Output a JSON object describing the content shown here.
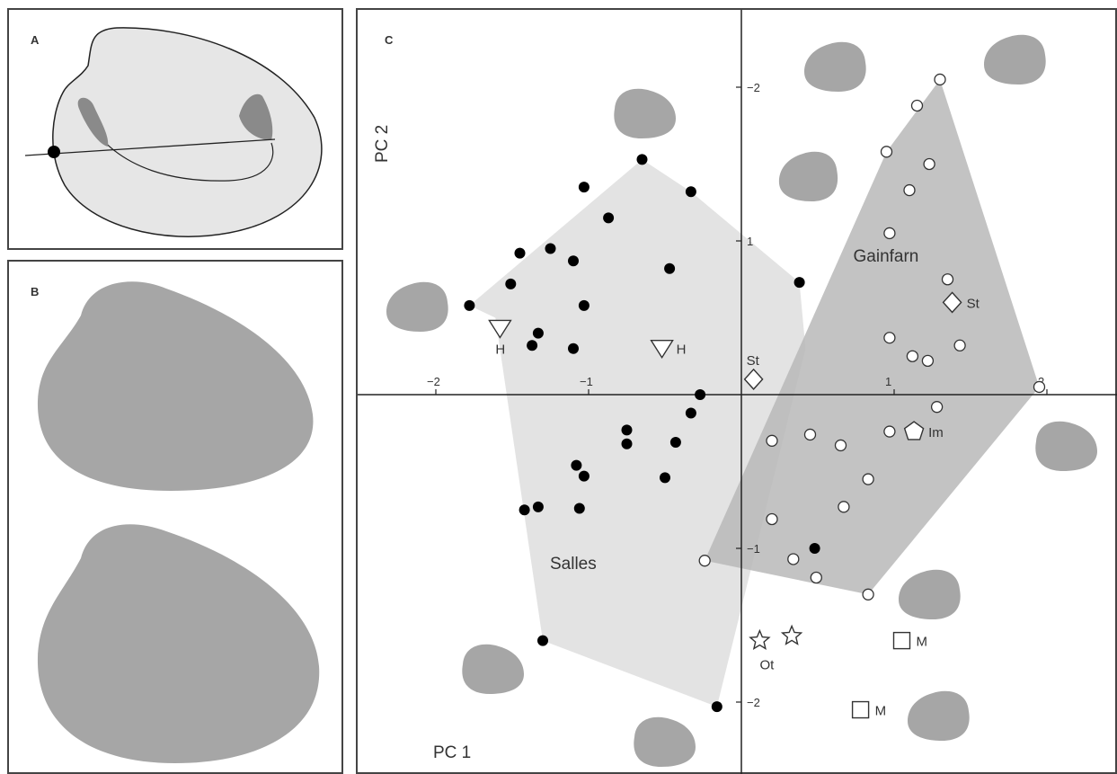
{
  "panels": {
    "a": {
      "label": "A"
    },
    "b": {
      "label": "B"
    },
    "c": {
      "label": "C"
    }
  },
  "colors": {
    "salles_hull": "#e3e3e3",
    "gainfarn_hull": "#b9b9b9",
    "outline_shape": "#a6a6a6",
    "axis": "#222222"
  },
  "chart_data": {
    "type": "scatter",
    "title": "",
    "xlabel": "PC 1",
    "ylabel": "PC 2",
    "xlim": [
      -2.4,
      2.45
    ],
    "ylim": [
      -2.45,
      2.45
    ],
    "x_ticks": [
      "−2",
      "−1",
      "1",
      "2"
    ],
    "y_ticks": [
      "−2",
      "1",
      "−1",
      "−2"
    ],
    "grid": false,
    "groups": [
      {
        "label": "Salles",
        "marker": "filled-circle"
      },
      {
        "label": "Gainfarn",
        "marker": "open-circle"
      }
    ],
    "salles_points": [
      [
        -0.65,
        1.53
      ],
      [
        -1.03,
        1.35
      ],
      [
        -0.33,
        1.32
      ],
      [
        -0.87,
        1.15
      ],
      [
        -1.45,
        0.92
      ],
      [
        -1.25,
        0.95
      ],
      [
        -1.1,
        0.87
      ],
      [
        -0.47,
        0.82
      ],
      [
        -1.51,
        0.72
      ],
      [
        0.38,
        0.73
      ],
      [
        -1.78,
        0.58
      ],
      [
        -1.03,
        0.58
      ],
      [
        -1.33,
        0.4
      ],
      [
        -1.37,
        0.32
      ],
      [
        -1.1,
        0.3
      ],
      [
        -0.27,
        0.0
      ],
      [
        -0.33,
        -0.12
      ],
      [
        -0.75,
        -0.23
      ],
      [
        -0.75,
        -0.32
      ],
      [
        -0.43,
        -0.31
      ],
      [
        -1.08,
        -0.46
      ],
      [
        -1.03,
        -0.53
      ],
      [
        -0.5,
        -0.54
      ],
      [
        -1.33,
        -0.73
      ],
      [
        -1.42,
        -0.75
      ],
      [
        -1.06,
        -0.74
      ],
      [
        0.48,
        -1.0
      ],
      [
        -1.3,
        -1.6
      ],
      [
        -0.16,
        -2.03
      ]
    ],
    "gainfarn_points": [
      [
        1.3,
        2.05
      ],
      [
        1.15,
        1.88
      ],
      [
        0.95,
        1.58
      ],
      [
        1.23,
        1.5
      ],
      [
        1.1,
        1.33
      ],
      [
        0.97,
        1.05
      ],
      [
        1.35,
        0.75
      ],
      [
        0.97,
        0.37
      ],
      [
        1.12,
        0.25
      ],
      [
        1.22,
        0.22
      ],
      [
        1.43,
        0.32
      ],
      [
        1.95,
        0.05
      ],
      [
        1.28,
        -0.08
      ],
      [
        0.97,
        -0.24
      ],
      [
        0.2,
        -0.3
      ],
      [
        0.45,
        -0.26
      ],
      [
        0.65,
        -0.33
      ],
      [
        0.83,
        -0.55
      ],
      [
        0.67,
        -0.73
      ],
      [
        0.2,
        -0.81
      ],
      [
        0.34,
        -1.07
      ],
      [
        0.49,
        -1.19
      ],
      [
        -0.24,
        -1.08
      ],
      [
        0.83,
        -1.3
      ]
    ],
    "salles_hull": [
      [
        -0.65,
        1.53
      ],
      [
        -0.33,
        1.32
      ],
      [
        0.38,
        0.73
      ],
      [
        0.42,
        0.3
      ],
      [
        -0.16,
        -2.03
      ],
      [
        -1.3,
        -1.6
      ],
      [
        -1.61,
        0.5
      ],
      [
        -1.78,
        0.58
      ]
    ],
    "gainfarn_hull": [
      [
        1.3,
        2.05
      ],
      [
        1.95,
        0.05
      ],
      [
        0.83,
        -1.3
      ],
      [
        -0.24,
        -1.08
      ],
      [
        0.95,
        1.58
      ]
    ],
    "reference_markers": [
      {
        "shape": "triangle-down",
        "label": "H",
        "x": -1.58,
        "y": 0.43
      },
      {
        "shape": "triangle-down",
        "label": "H",
        "x": -0.52,
        "y": 0.3
      },
      {
        "shape": "diamond",
        "label": "St",
        "x": 0.08,
        "y": 0.1
      },
      {
        "shape": "diamond",
        "label": "St",
        "x": 1.38,
        "y": 0.6
      },
      {
        "shape": "pentagon",
        "label": "Im",
        "x": 1.13,
        "y": -0.24
      },
      {
        "shape": "star",
        "label": "",
        "x": 0.12,
        "y": -1.6
      },
      {
        "shape": "star",
        "label": "",
        "x": 0.33,
        "y": -1.57
      },
      {
        "shape": "square",
        "label": "M",
        "x": 1.05,
        "y": -1.6
      },
      {
        "shape": "square",
        "label": "M",
        "x": 0.78,
        "y": -2.05
      }
    ],
    "annotations": [
      {
        "text": "Salles",
        "x": -0.9,
        "y": -1.1
      },
      {
        "text": "Gainfarn",
        "x": 1.15,
        "y": 0.9
      },
      {
        "text": "Ot",
        "x": 0.25,
        "y": -1.75
      }
    ]
  }
}
